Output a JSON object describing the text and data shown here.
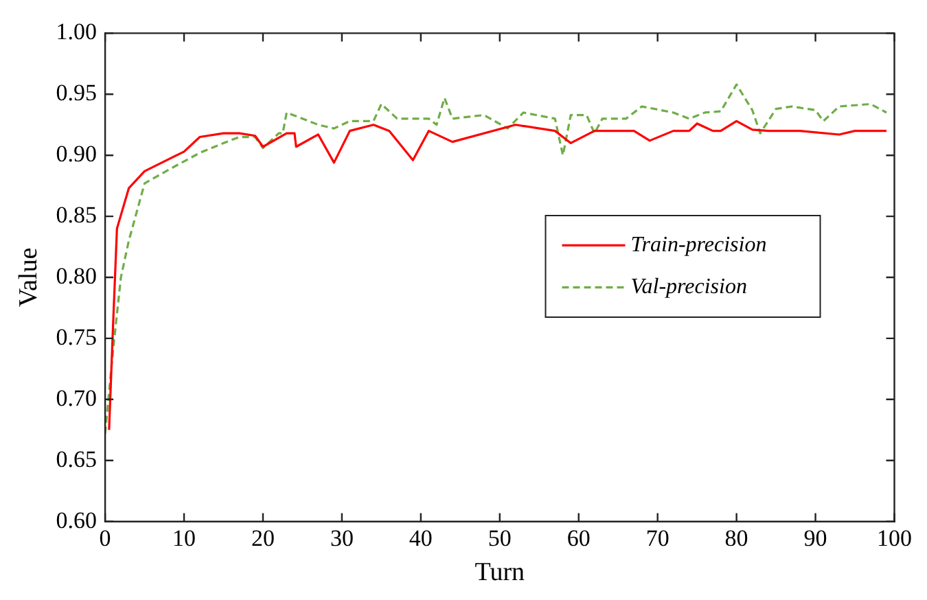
{
  "chart_data": {
    "type": "line",
    "xlabel": "Turn",
    "ylabel": "Value",
    "xlim": [
      0,
      100
    ],
    "xticks": [
      0,
      10,
      20,
      30,
      40,
      50,
      60,
      70,
      80,
      90,
      100
    ],
    "ylim": [
      0.6,
      1.0
    ],
    "yticks": [
      {
        "value": 0.6,
        "label": "0.60"
      },
      {
        "value": 0.65,
        "label": "0.65"
      },
      {
        "value": 0.7,
        "label": "0.70"
      },
      {
        "value": 0.75,
        "label": "0.75"
      },
      {
        "value": 0.8,
        "label": "0.80"
      },
      {
        "value": 0.85,
        "label": "0.85"
      },
      {
        "value": 0.9,
        "label": "0.90"
      },
      {
        "value": 0.95,
        "label": "0.95"
      },
      {
        "value": 1.0,
        "label": "1.00"
      }
    ],
    "grid": false,
    "legend": "right",
    "marker": "none",
    "series": [
      {
        "name": "Train-precision",
        "color": "#ff0000",
        "line_style": "solid",
        "x": [
          0.5,
          1,
          1.5,
          3,
          5,
          10,
          12,
          15,
          17,
          19,
          20,
          23,
          24,
          24.2,
          27,
          29,
          31,
          34,
          36,
          39,
          41,
          44,
          52,
          57,
          59,
          62,
          67,
          69,
          72,
          74,
          75,
          77,
          78,
          80,
          82,
          84,
          88,
          93,
          95,
          99
        ],
        "values": [
          0.675,
          0.76,
          0.84,
          0.873,
          0.887,
          0.903,
          0.915,
          0.918,
          0.918,
          0.916,
          0.907,
          0.918,
          0.918,
          0.907,
          0.917,
          0.894,
          0.92,
          0.925,
          0.92,
          0.896,
          0.92,
          0.911,
          0.925,
          0.92,
          0.91,
          0.92,
          0.92,
          0.912,
          0.92,
          0.92,
          0.926,
          0.92,
          0.92,
          0.928,
          0.921,
          0.92,
          0.92,
          0.917,
          0.92,
          0.92
        ]
      },
      {
        "name": "Val-precision",
        "color": "#70ad47",
        "line_style": "dashed",
        "x": [
          0,
          1,
          2,
          3,
          5,
          8,
          12,
          15,
          17,
          19,
          20,
          22,
          22.5,
          23,
          27,
          29,
          31,
          34,
          35,
          37,
          41,
          42,
          43,
          44,
          48,
          51,
          53,
          57,
          58,
          59,
          61,
          62,
          63,
          66,
          68,
          72,
          74,
          76,
          78,
          80,
          82,
          83,
          85,
          87,
          90,
          91,
          93,
          97,
          99
        ],
        "values": [
          0.672,
          0.74,
          0.8,
          0.83,
          0.877,
          0.888,
          0.902,
          0.91,
          0.915,
          0.915,
          0.906,
          0.918,
          0.918,
          0.935,
          0.925,
          0.922,
          0.928,
          0.928,
          0.942,
          0.93,
          0.93,
          0.925,
          0.947,
          0.93,
          0.933,
          0.922,
          0.935,
          0.93,
          0.9,
          0.933,
          0.933,
          0.918,
          0.93,
          0.93,
          0.94,
          0.935,
          0.93,
          0.935,
          0.936,
          0.958,
          0.937,
          0.918,
          0.938,
          0.94,
          0.937,
          0.928,
          0.94,
          0.942,
          0.935
        ]
      }
    ]
  }
}
